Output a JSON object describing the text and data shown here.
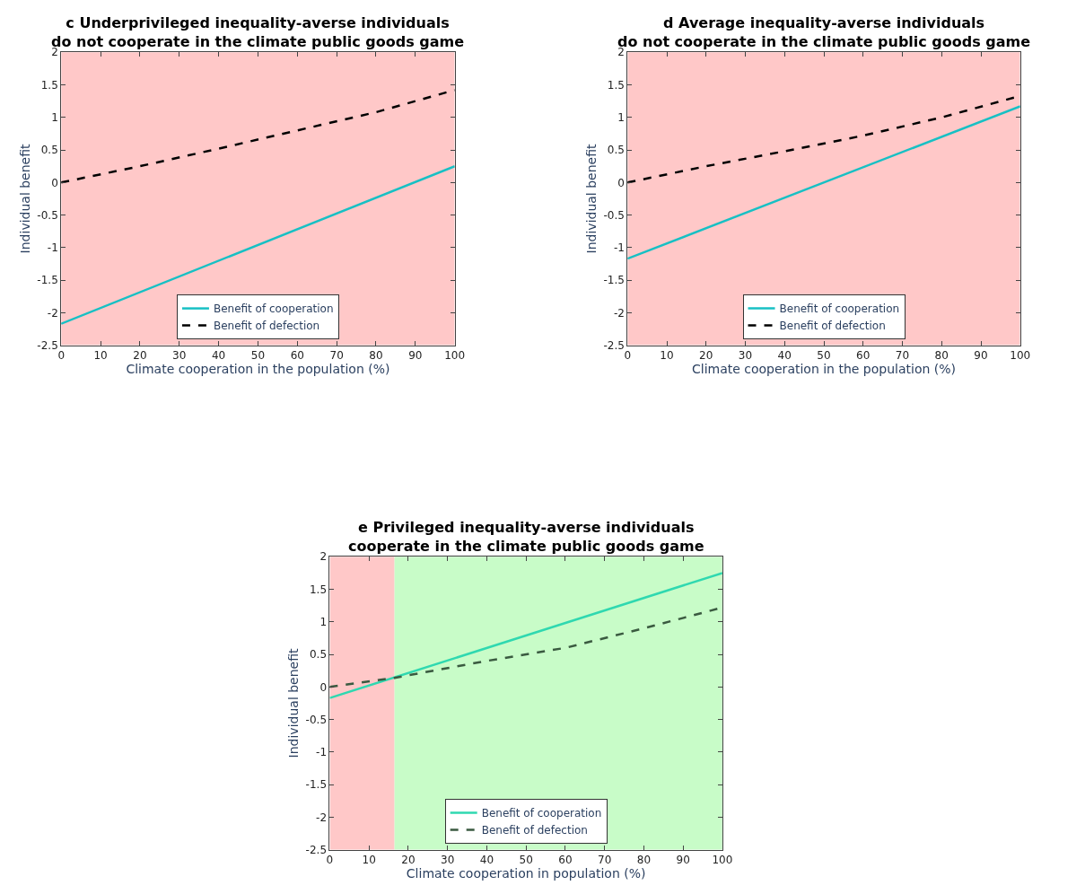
{
  "chart_data": [
    {
      "type": "line",
      "title": "c Underprivileged inequality-averse individuals\ndo not cooperate in the climate public goods game",
      "xlabel": "Climate cooperation in the population (%)",
      "ylabel": "Individual benefit",
      "xlim": [
        0,
        100
      ],
      "xticks": [
        0,
        10,
        20,
        30,
        40,
        50,
        60,
        70,
        80,
        90,
        100
      ],
      "ylim": [
        -2.5,
        2
      ],
      "yticks": [
        -2.5,
        -2,
        -1.5,
        -1,
        -0.5,
        0,
        0.5,
        1,
        1.5,
        2
      ],
      "legend": "bottom",
      "grid": false,
      "series": [
        {
          "name": "Benefit of cooperation",
          "color": "#17c0c4",
          "line_style": "solid",
          "x": [
            0,
            100
          ],
          "values": [
            -2.17,
            0.25
          ]
        },
        {
          "name": "Benefit of defection",
          "color": "#000000",
          "line_style": "dashed",
          "x": [
            0,
            20,
            40,
            60,
            80,
            100
          ],
          "values": [
            0,
            0.25,
            0.52,
            0.8,
            1.08,
            1.42
          ]
        }
      ],
      "bands": [
        {
          "axis": "x",
          "from": 0,
          "to": 100,
          "color": "#ffc8c8"
        }
      ]
    },
    {
      "type": "line",
      "title": "d Average inequality-averse individuals\ndo not cooperate in the climate public goods game",
      "xlabel": "Climate cooperation in the population (%)",
      "ylabel": "Individual benefit",
      "xlim": [
        0,
        100
      ],
      "xticks": [
        0,
        10,
        20,
        30,
        40,
        50,
        60,
        70,
        80,
        90,
        100
      ],
      "ylim": [
        -2.5,
        2
      ],
      "yticks": [
        -2.5,
        -2,
        -1.5,
        -1,
        -0.5,
        0,
        0.5,
        1,
        1.5,
        2
      ],
      "legend": "bottom",
      "grid": false,
      "series": [
        {
          "name": "Benefit of cooperation",
          "color": "#17c0c4",
          "line_style": "solid",
          "x": [
            0,
            100
          ],
          "values": [
            -1.17,
            1.17
          ]
        },
        {
          "name": "Benefit of defection",
          "color": "#000000",
          "line_style": "dashed",
          "x": [
            0,
            20,
            40,
            60,
            80,
            100
          ],
          "values": [
            0,
            0.25,
            0.48,
            0.72,
            1.0,
            1.33
          ]
        }
      ],
      "bands": [
        {
          "axis": "x",
          "from": 0,
          "to": 100,
          "color": "#ffc8c8"
        }
      ]
    },
    {
      "type": "line",
      "title": "e Privileged inequality-averse individuals\ncooperate in the climate public goods game",
      "xlabel": "Climate cooperation in population (%)",
      "ylabel": "Individual benefit",
      "xlim": [
        0,
        100
      ],
      "xticks": [
        0,
        10,
        20,
        30,
        40,
        50,
        60,
        70,
        80,
        90,
        100
      ],
      "ylim": [
        -2.5,
        2
      ],
      "yticks": [
        -2.5,
        -2,
        -1.5,
        -1,
        -0.5,
        0,
        0.5,
        1,
        1.5,
        2
      ],
      "legend": "bottom",
      "grid": false,
      "series": [
        {
          "name": "Benefit of cooperation",
          "color": "#2fd8b0",
          "line_style": "solid",
          "x": [
            0,
            100
          ],
          "values": [
            -0.17,
            1.75
          ]
        },
        {
          "name": "Benefit of defection",
          "color": "#3a5a40",
          "line_style": "dashed",
          "x": [
            0,
            16.5,
            40,
            60,
            80,
            100
          ],
          "values": [
            0,
            0.14,
            0.4,
            0.6,
            0.9,
            1.22
          ]
        }
      ],
      "bands": [
        {
          "axis": "x",
          "from": 0,
          "to": 16.5,
          "color": "#ffc8c8"
        },
        {
          "axis": "x",
          "from": 16.5,
          "to": 100,
          "color": "#c8fcc8"
        }
      ]
    }
  ]
}
